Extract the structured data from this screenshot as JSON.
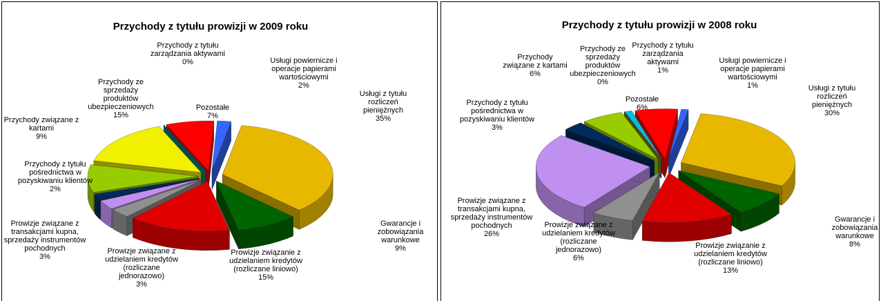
{
  "chart_data": [
    {
      "type": "pie3d",
      "title": "Przychody z tytułu prowizji w 2009 roku",
      "categories": [
        "Usługi z tytułu rozliczeń pieniężnych",
        "Gwarancje i zobowiązania warunkowe",
        "Prowizje związanie z udzielaniem kredytów (rozliczane liniowo)",
        "Prowizje związane z udzielaniem kredytów (rozliczane jednorazowo)",
        "Prowizje związane z transakcjami kupna, sprzedaży instrumentów pochodnych",
        "Przychody z tytułu pośrednictwa w pozyskiwaniu klientów",
        "Przychody związane z kartami",
        "Przychody ze sprzedaży produktów ubezpieczeniowych",
        "Przychody z tytułu zarządzania aktywami",
        "Pozostałe",
        "Usługi powiernicze i operacje papierami wartościowymi"
      ],
      "values": [
        35,
        9,
        15,
        3,
        3,
        2,
        9,
        15,
        0,
        7,
        2
      ],
      "value_labels": [
        "35%",
        "9%",
        "15%",
        "3%",
        "3%",
        "2%",
        "9%",
        "15%",
        "0%",
        "7%",
        "2%"
      ],
      "colors": [
        "#e8b800",
        "#006400",
        "#e00000",
        "#909090",
        "#c090f0",
        "#002a5c",
        "#99cc00",
        "#f0f000",
        "#008080",
        "#ff0000",
        "#3366ff"
      ]
    },
    {
      "type": "pie3d",
      "title": "Przychody z tytułu prowizji w 2008 roku",
      "categories": [
        "Usługi z tytułu rozliczeń pieniężnych",
        "Gwarancje i zobowiązania warunkowe",
        "Prowizje związanie z udzielaniem kredytów (rozliczane liniowo)",
        "Prowizje związane z udzielaniem kredytów (rozliczane jednorazowo)",
        "Prowizje związane z transakcjami kupna, sprzedaży instrumentów pochodnych",
        "Przychody z tytułu pośrednictwa w pozyskiwaniu klientów",
        "Przychody związane z kartami",
        "Przychody ze sprzedaży produktów ubezpieczeniowych",
        "Przychody z tytułu zarządzania aktywami",
        "Pozostałe",
        "Usługi powiernicze i operacje papierami wartościowymi"
      ],
      "values": [
        30,
        8,
        13,
        6,
        26,
        3,
        6,
        0,
        1,
        6,
        1
      ],
      "value_labels": [
        "30%",
        "8%",
        "13%",
        "6%",
        "26%",
        "3%",
        "6%",
        "0%",
        "1%",
        "6%",
        "1%"
      ],
      "colors": [
        "#e8b800",
        "#006400",
        "#e00000",
        "#909090",
        "#c090f0",
        "#002a5c",
        "#99cc00",
        "#808000",
        "#00c0e0",
        "#ff0000",
        "#3366ff"
      ]
    }
  ]
}
